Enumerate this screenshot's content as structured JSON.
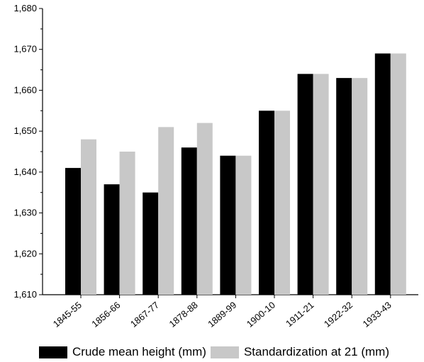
{
  "chart_data": {
    "type": "bar",
    "title": "",
    "xlabel": "",
    "ylabel": "",
    "categories": [
      "1845-55",
      "1856-66",
      "1867-77",
      "1878-88",
      "1889-99",
      "1900-10",
      "1911-21",
      "1922-32",
      "1933-43"
    ],
    "series": [
      {
        "name": "Crude mean height (mm)",
        "color": "#000000",
        "values": [
          1641,
          1637,
          1635,
          1646,
          1644,
          1655,
          1664,
          1663,
          1669
        ]
      },
      {
        "name": "Standardization at 21 (mm)",
        "color": "#c8c8c8",
        "values": [
          1648,
          1645,
          1651,
          1652,
          1644,
          1655,
          1664,
          1663,
          1669
        ]
      }
    ],
    "ylim": [
      1610,
      1680
    ],
    "yticks": [
      "1,610",
      "1,620",
      "1,630",
      "1,640",
      "1,650",
      "1,660",
      "1,670",
      "1,680"
    ],
    "grid": false,
    "legend_position": "bottom"
  }
}
